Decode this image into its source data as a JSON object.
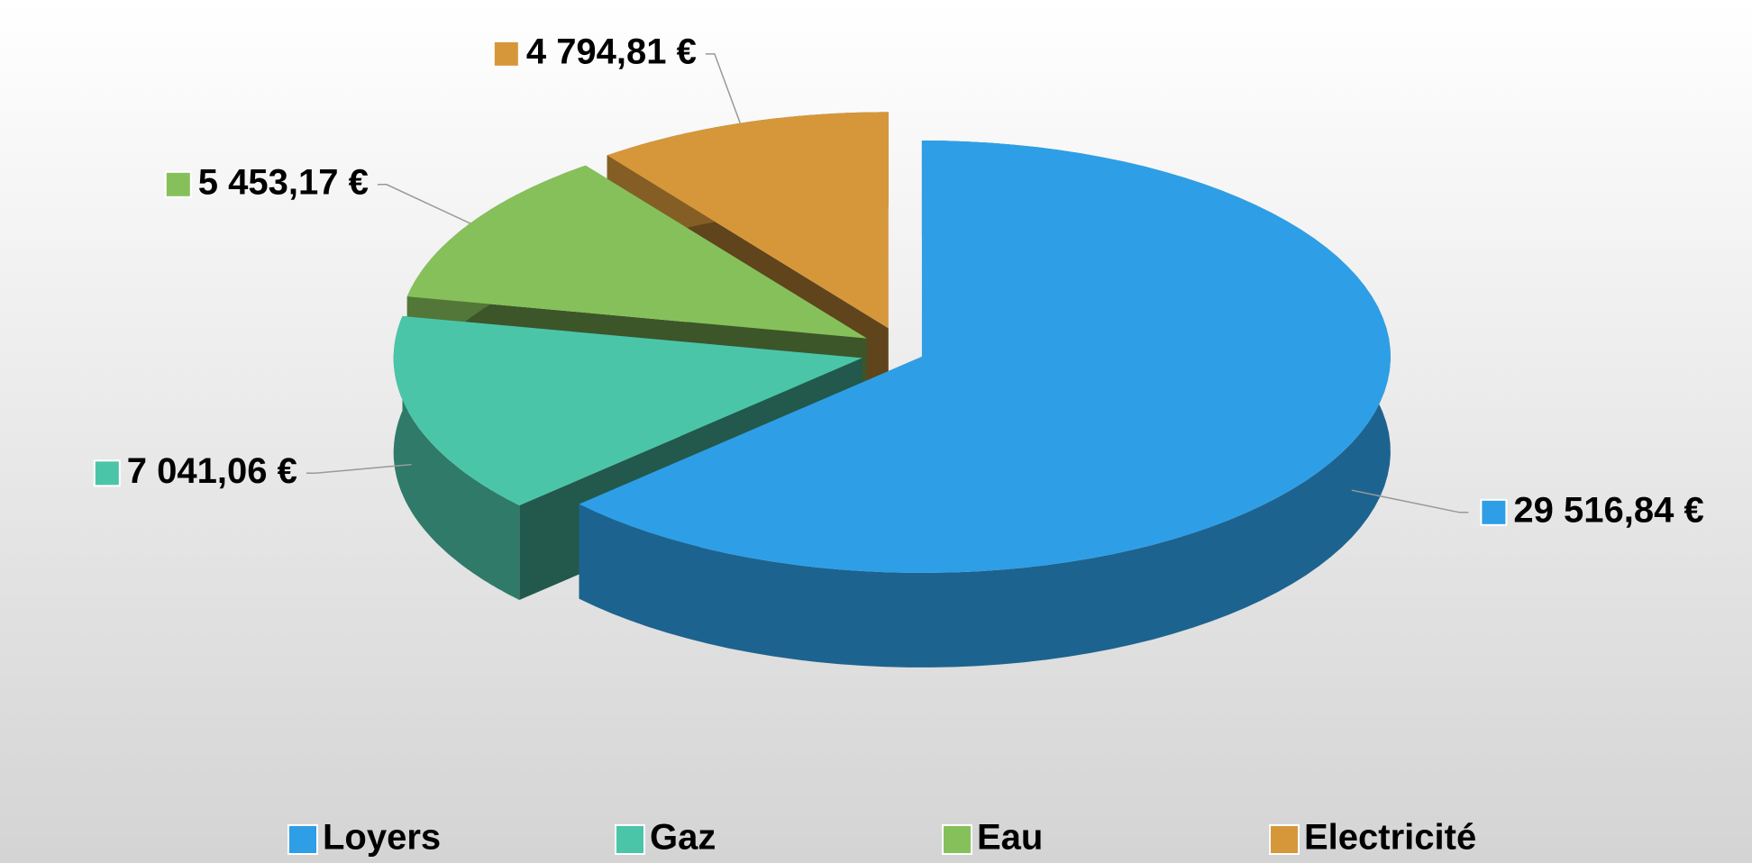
{
  "chart_data": {
    "type": "pie",
    "categories": [
      "Loyers",
      "Gaz",
      "Eau",
      "Electricité"
    ],
    "series": [
      {
        "colors": [
          "#2e9fe6",
          "#4bc5a8",
          "#86c05a",
          "#d6973b"
        ],
        "values": [
          29516.84,
          7041.06,
          5453.17,
          4794.81
        ],
        "value_labels": [
          "29 516,84 €",
          "7 041,06 €",
          "5 453,17 €",
          "4 794,81 €"
        ]
      }
    ],
    "legend": "bottom"
  }
}
